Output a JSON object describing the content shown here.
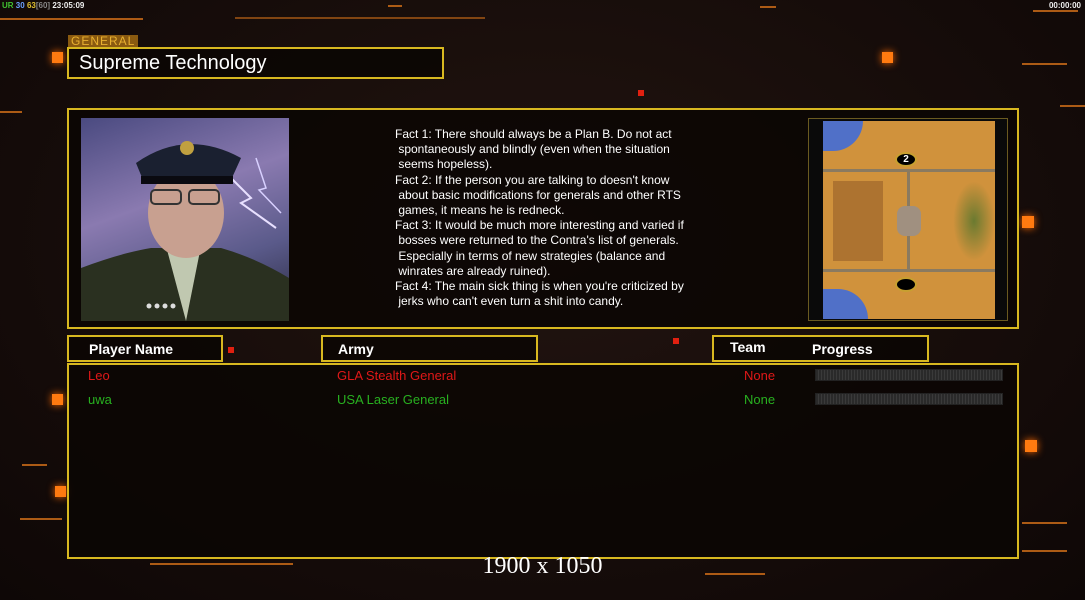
{
  "status": {
    "ur": "UR",
    "fps1": "30",
    "fps2": "63",
    "fps_cap": "[60]",
    "time": "23:05:09"
  },
  "clock": "00:00:00",
  "general_label": "GENERAL",
  "general_name": "Supreme Technology",
  "facts": [
    "Fact 1: There should always be a Plan B. Do not act",
    " spontaneously and blindly (even when the situation",
    " seems hopeless).",
    "Fact 2: If the person you are talking to doesn't know",
    " about basic modifications for generals and other RTS",
    " games, it means he is redneck.",
    "Fact 3: It would be much more interesting and varied if",
    " bosses were returned to the Contra's list of generals.",
    " Especially in terms of new strategies (balance and",
    " winrates are already ruined).",
    "Fact 4: The main sick thing is when you're criticized by",
    " jerks who can't even turn a shit into candy."
  ],
  "map": {
    "player_marker": "2"
  },
  "headers": {
    "player": "Player Name",
    "army": "Army",
    "team": "Team",
    "progress": "Progress"
  },
  "players": [
    {
      "name": "Leo",
      "army": "GLA Stealth General",
      "team": "None",
      "progress": 0,
      "color": "#e01818"
    },
    {
      "name": "uwa",
      "army": "USA Laser General",
      "team": "None",
      "progress": 0,
      "color": "#28b020"
    }
  ],
  "resolution": "1900 x 1050",
  "colors": {
    "frame": "#d8b820",
    "accent": "#ff7a10"
  }
}
